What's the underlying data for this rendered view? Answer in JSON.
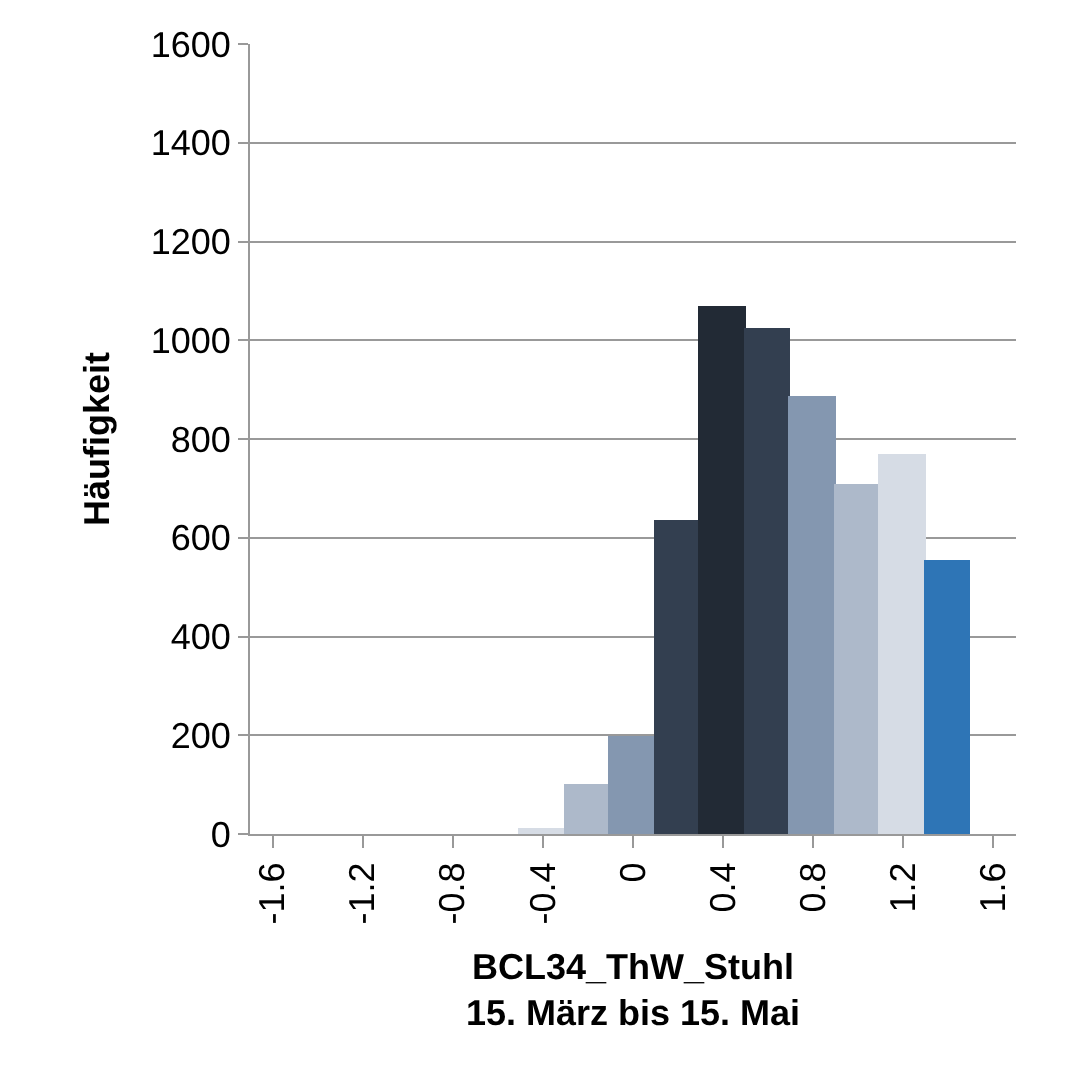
{
  "chart_data": {
    "type": "bar",
    "xlabel": "BCL34_ThW_Stuhl\n15. März bis 15. Mai",
    "ylabel": "Häufigkeit",
    "categories": [
      "-1.6",
      null,
      "-1.2",
      null,
      "-0.8",
      null,
      "-0.4",
      null,
      "0",
      null,
      "0.4",
      null,
      "0.8",
      null,
      "1.2",
      null,
      "1.6"
    ],
    "values": [
      0,
      0,
      0,
      0,
      0,
      0,
      8,
      96,
      194,
      631,
      1065,
      1021,
      884,
      705,
      767,
      550,
      0
    ],
    "colors": [
      "#d6dce5",
      "#d6dce5",
      "#d6dce5",
      "#d6dce5",
      "#d6dce5",
      "#d6dce5",
      "#d6dce5",
      "#adb9ca",
      "#8497b0",
      "#333f50",
      "#222a35",
      "#333f50",
      "#8497b0",
      "#adb9ca",
      "#d6dce5",
      "#2e75b6",
      "#2e75b6"
    ],
    "ylim": [
      0,
      1600
    ],
    "yticks": [
      0,
      200,
      400,
      600,
      800,
      1000,
      1200,
      1400,
      1600
    ],
    "grid": "y",
    "legend": false
  }
}
